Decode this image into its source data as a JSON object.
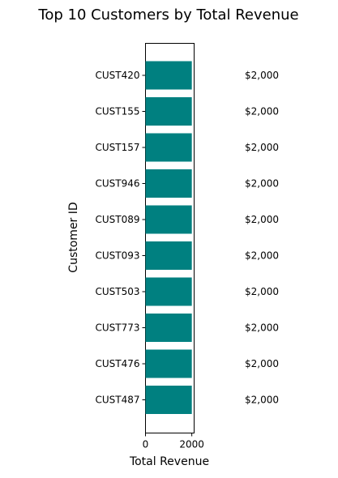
{
  "chart_data": {
    "type": "bar",
    "orientation": "horizontal",
    "title": "Top 10 Customers by Total Revenue",
    "xlabel": "Total Revenue",
    "ylabel": "Customer ID",
    "categories": [
      "CUST420",
      "CUST155",
      "CUST157",
      "CUST946",
      "CUST089",
      "CUST093",
      "CUST503",
      "CUST773",
      "CUST476",
      "CUST487"
    ],
    "values": [
      2000,
      2000,
      2000,
      2000,
      2000,
      2000,
      2000,
      2000,
      2000,
      2000
    ],
    "data_labels": [
      "$2,000",
      "$2,000",
      "$2,000",
      "$2,000",
      "$2,000",
      "$2,000",
      "$2,000",
      "$2,000",
      "$2,000",
      "$2,000"
    ],
    "xlim": [
      0,
      2100
    ],
    "xticks": [
      0,
      2000
    ],
    "xtick_labels": [
      "0",
      "2000"
    ],
    "grid": false,
    "colors": {
      "bar": "#008080",
      "axis": "#000000",
      "text": "#000000"
    }
  }
}
